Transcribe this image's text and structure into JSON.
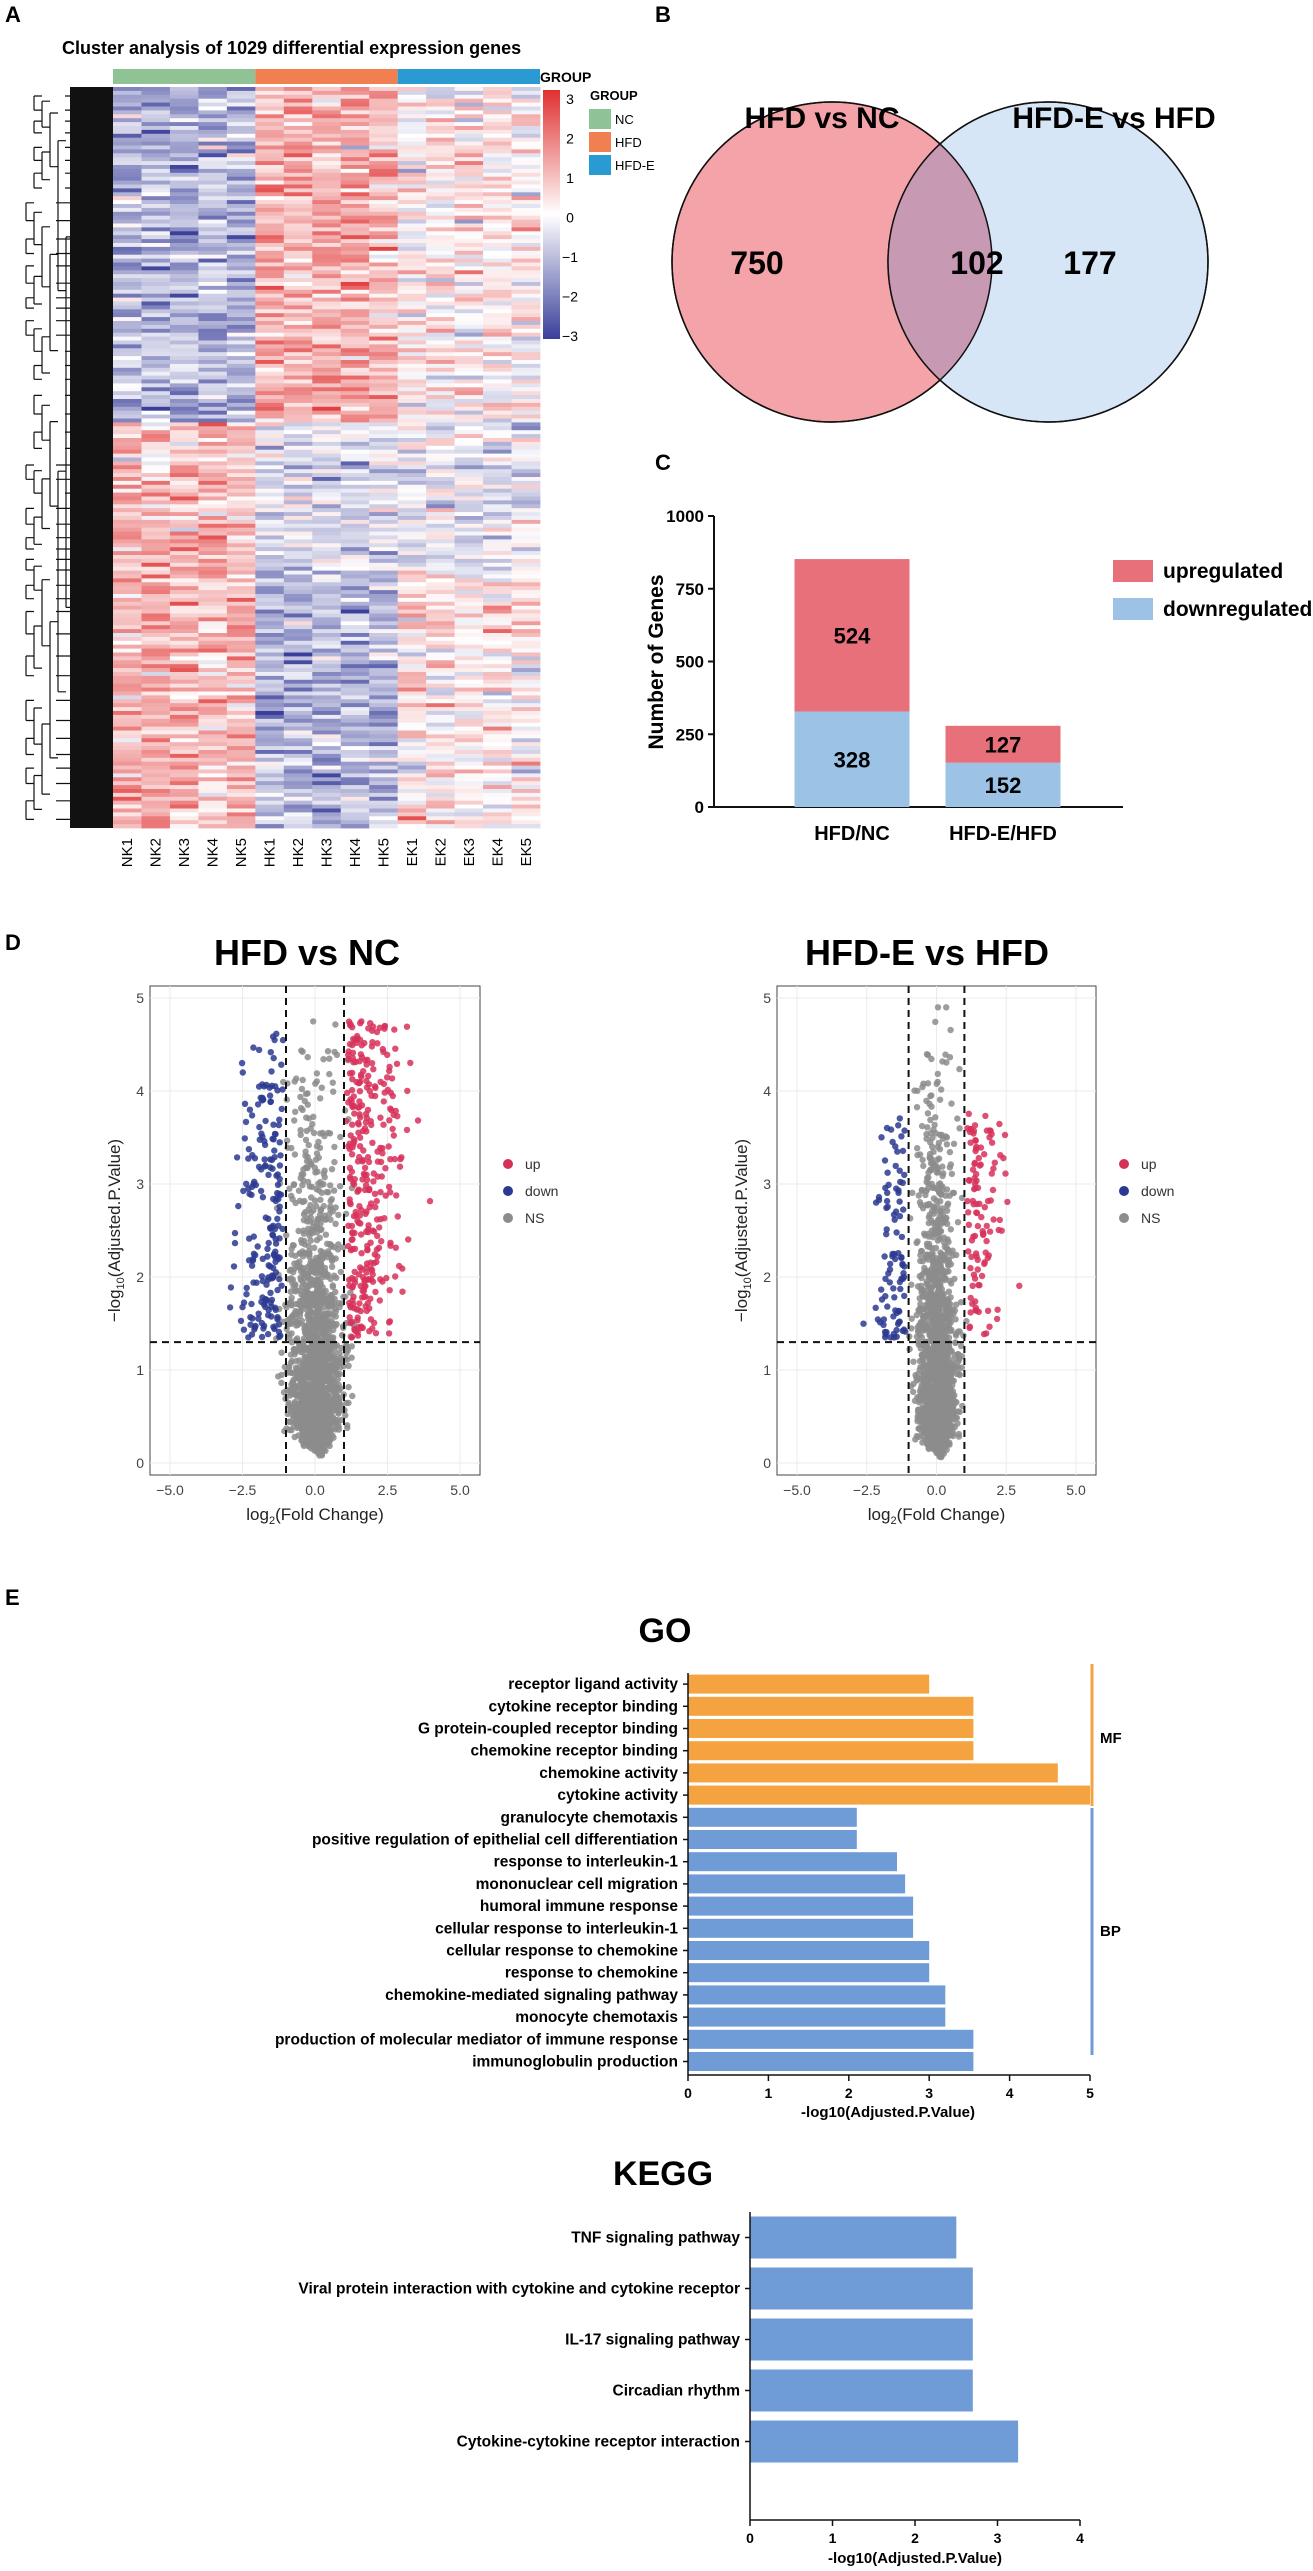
{
  "panel_labels": {
    "a": "A",
    "b": "B",
    "c": "C",
    "d": "D",
    "e": "E"
  },
  "colors": {
    "up_red": "#e8707a",
    "down_blue": "#9cc3e6",
    "venn_left": "#f4a3a8",
    "venn_right": "#d7e6f6",
    "volcano_up": "#d7315a",
    "volcano_down": "#2b3990",
    "volcano_ns": "#8c8c8c",
    "go_mf": "#f4a340",
    "go_bp": "#6f9bd6",
    "kegg": "#6f9bd6",
    "group_nc": "#8fc295",
    "group_hfd": "#f08050",
    "group_hfde": "#2a9ad3"
  },
  "chart_data": [
    {
      "id": "A",
      "type": "heatmap",
      "title": "Cluster analysis of 1029 differential expression genes",
      "columns": [
        "NK1",
        "NK2",
        "NK3",
        "NK4",
        "NK5",
        "HK1",
        "HK2",
        "HK3",
        "HK4",
        "HK5",
        "EK1",
        "EK2",
        "EK3",
        "EK4",
        "EK5"
      ],
      "group_bar_label": "GROUP",
      "groups": [
        {
          "name": "NC",
          "color": "#8fc295"
        },
        {
          "name": "HFD",
          "color": "#f08050"
        },
        {
          "name": "HFD-E",
          "color": "#2a9ad3"
        }
      ],
      "legend_title": "GROUP",
      "colorscale": {
        "min": -3,
        "max": 3,
        "ticks": [
          "3",
          "2",
          "1",
          "0",
          "−1",
          "−2",
          "−3"
        ],
        "low": "#3a3f9a",
        "mid": "#ffffff",
        "high": "#e03030"
      },
      "rows": 1029
    },
    {
      "id": "B",
      "type": "venn",
      "sets": [
        "HFD vs NC",
        "HFD-E vs HFD"
      ],
      "only_left": "750",
      "intersection": "102",
      "only_right": "177"
    },
    {
      "id": "C",
      "type": "bar",
      "stacked": true,
      "categories": [
        "HFD/NC",
        "HFD-E/HFD"
      ],
      "series": [
        {
          "name": "downregulated",
          "values": [
            328,
            152
          ],
          "labels": [
            "328",
            "152"
          ],
          "color": "#9cc3e6"
        },
        {
          "name": "upregulated",
          "values": [
            524,
            127
          ],
          "labels": [
            "524",
            "127"
          ],
          "color": "#e8707a"
        }
      ],
      "ylabel": "Number of Genes",
      "ylim": [
        0,
        1000
      ],
      "yticks": [
        "0",
        "250",
        "500",
        "750",
        "1000"
      ],
      "legend": [
        "upregulated",
        "downregulated"
      ]
    },
    {
      "id": "D1",
      "type": "scatter",
      "title": "HFD vs NC",
      "xlabel_base": "log",
      "xlabel_sub": "2",
      "xlabel_rest": "(Fold Change)",
      "ylabel_base": "−log",
      "ylabel_sub": "10",
      "ylabel_rest": "(Adjusted.P.Value)",
      "xlim": [
        -5,
        5
      ],
      "ylim": [
        0,
        5
      ],
      "xticks": [
        "−5.0",
        "−2.5",
        "0.0",
        "2.5",
        "5.0"
      ],
      "yticks": [
        "0",
        "1",
        "2",
        "3",
        "4",
        "5"
      ],
      "logfc_cutoff": 1,
      "p_cutoff": 1.3,
      "legend": [
        "up",
        "down",
        "NS"
      ]
    },
    {
      "id": "D2",
      "type": "scatter",
      "title": "HFD-E vs HFD",
      "xlabel_base": "log",
      "xlabel_sub": "2",
      "xlabel_rest": "(Fold Change)",
      "ylabel_base": "−log",
      "ylabel_sub": "10",
      "ylabel_rest": "(Adjusted.P.Value)",
      "xlim": [
        -5,
        5
      ],
      "ylim": [
        0,
        5
      ],
      "xticks": [
        "−5.0",
        "−2.5",
        "0.0",
        "2.5",
        "5.0"
      ],
      "yticks": [
        "0",
        "1",
        "2",
        "3",
        "4",
        "5"
      ],
      "logfc_cutoff": 1,
      "p_cutoff": 1.3,
      "legend": [
        "up",
        "down",
        "NS"
      ]
    },
    {
      "id": "E1",
      "type": "bar",
      "orientation": "horizontal",
      "title": "GO",
      "categories": [
        "receptor ligand activity",
        "cytokine receptor binding",
        "G protein-coupled receptor binding",
        "chemokine receptor binding",
        "chemokine activity",
        "cytokine activity",
        "granulocyte chemotaxis",
        "positive regulation of epithelial cell differentiation",
        "response to interleukin-1",
        "mononuclear cell migration",
        "humoral immune response",
        "cellular response to interleukin-1",
        "cellular response to chemokine",
        "response to chemokine",
        "chemokine-mediated signaling pathway",
        "monocyte chemotaxis",
        "production of molecular mediator of immune response",
        "immunoglobulin production"
      ],
      "values": [
        3.0,
        3.55,
        3.55,
        3.55,
        4.6,
        5.0,
        2.1,
        2.1,
        2.6,
        2.7,
        2.8,
        2.8,
        3.0,
        3.0,
        3.2,
        3.2,
        3.55,
        3.55
      ],
      "groups": [
        "MF",
        "MF",
        "MF",
        "MF",
        "MF",
        "MF",
        "BP",
        "BP",
        "BP",
        "BP",
        "BP",
        "BP",
        "BP",
        "BP",
        "BP",
        "BP",
        "BP",
        "BP"
      ],
      "group_labels": [
        "MF",
        "BP"
      ],
      "xlabel": "-log10(Adjusted.P.Value)",
      "xlim": [
        0,
        5
      ],
      "xticks": [
        "0",
        "1",
        "2",
        "3",
        "4",
        "5"
      ]
    },
    {
      "id": "E2",
      "type": "bar",
      "orientation": "horizontal",
      "title": "KEGG",
      "categories": [
        "TNF signaling pathway",
        "Viral protein interaction with cytokine and cytokine receptor",
        "IL-17 signaling pathway",
        "Circadian rhythm",
        "Cytokine-cytokine receptor interaction"
      ],
      "values": [
        2.5,
        2.7,
        2.7,
        2.7,
        3.25
      ],
      "xlabel": "-log10(Adjusted.P.Value)",
      "xlim": [
        0,
        4
      ],
      "xticks": [
        "0",
        "1",
        "2",
        "3",
        "4"
      ]
    }
  ]
}
